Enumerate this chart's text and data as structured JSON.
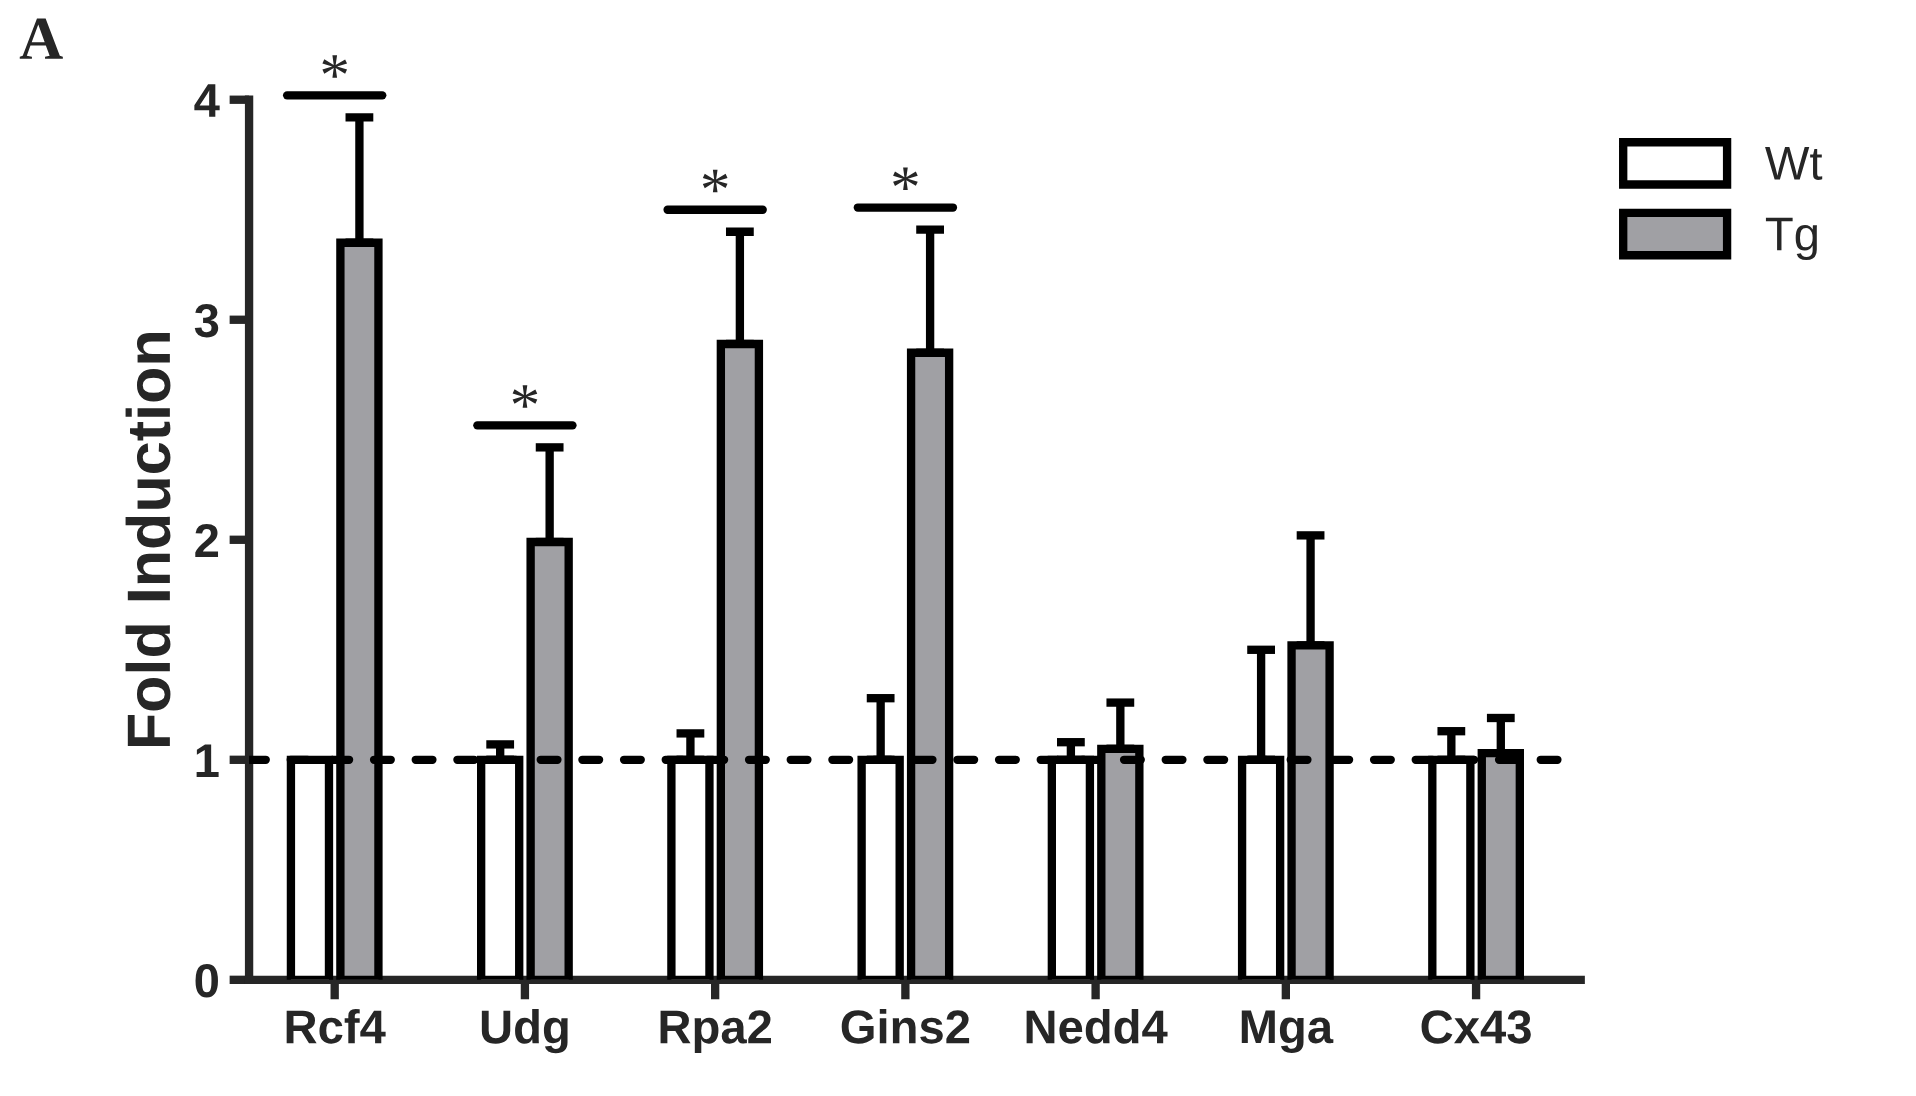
{
  "chart_data": {
    "type": "bar",
    "ylabel": "Fold Induction",
    "categories": [
      "Rcf4",
      "Udg",
      "Rpa2",
      "Gins2",
      "Nedd4",
      "Mga",
      "Cx43"
    ],
    "series": [
      {
        "name": "Wt",
        "color": "#ffffff",
        "values": [
          1,
          1,
          1,
          1,
          1,
          1,
          1
        ],
        "errors": [
          null,
          [
            1,
            1.07
          ],
          [
            1,
            1.12
          ],
          [
            1,
            1.28
          ],
          [
            1,
            1.08
          ],
          [
            1,
            1.5
          ],
          [
            1,
            1.13
          ]
        ]
      },
      {
        "name": "Tg",
        "color": "#a0a0a4",
        "values": [
          3.35,
          1.99,
          2.89,
          2.85,
          1.05,
          1.52,
          1.03
        ],
        "errors": [
          [
            3.35,
            3.92
          ],
          [
            1.99,
            2.42
          ],
          [
            2.89,
            3.4
          ],
          [
            2.85,
            3.41
          ],
          [
            1.05,
            1.26
          ],
          [
            1.52,
            2.02
          ],
          [
            1.03,
            1.19
          ]
        ]
      }
    ],
    "ylim": [
      0,
      4
    ],
    "yticks": [
      0,
      1,
      2,
      3,
      4
    ],
    "ref_lines": [
      {
        "axis": "y",
        "value": 1,
        "color": "#000000",
        "line_style": "dashed"
      }
    ],
    "annotations": [
      "A",
      "*",
      "*",
      "*",
      "*"
    ],
    "legend": "top right",
    "grid": false
  }
}
